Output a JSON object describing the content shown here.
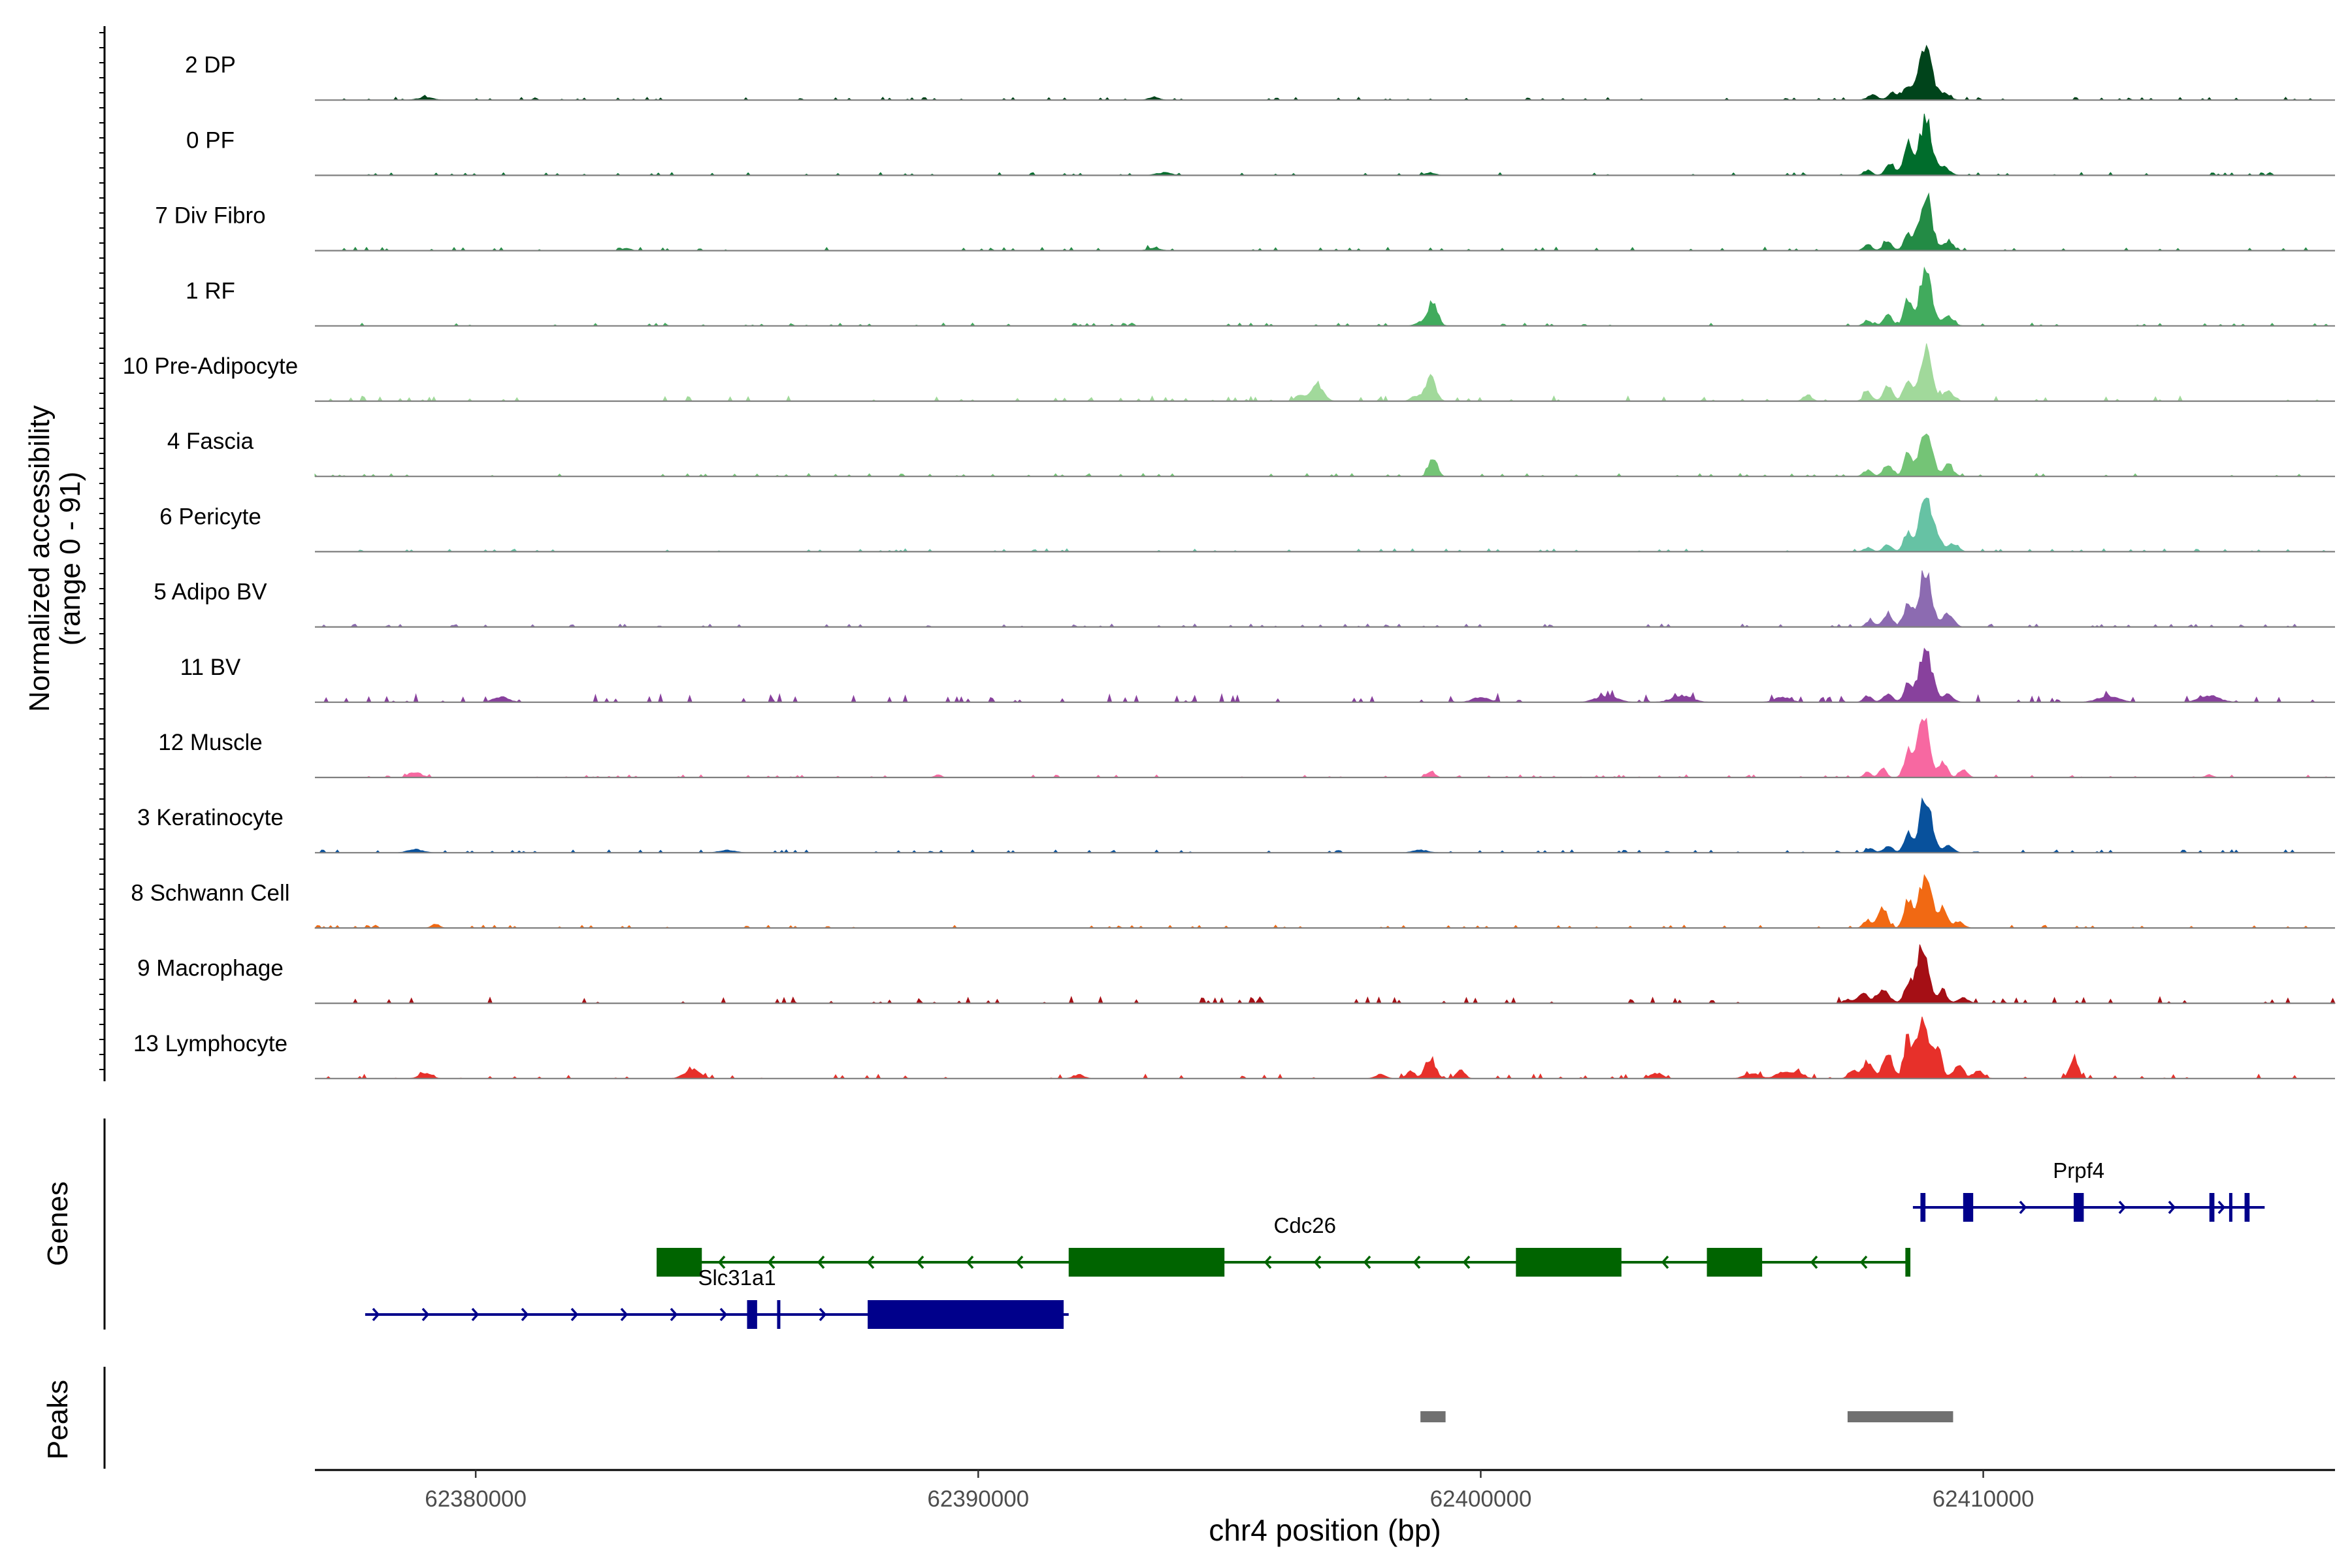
{
  "chart_data": {
    "type": "area",
    "title": "",
    "ylabel_line1": "Normalized accessibility",
    "ylabel_line2": "(range 0 - 91)",
    "xlabel": "chr4 position (bp)",
    "xlim": [
      62376800,
      62417000
    ],
    "ylim": [
      0,
      91
    ],
    "x_ticks": [
      62380000,
      62390000,
      62400000,
      62410000
    ],
    "x_tick_labels": [
      "62380000",
      "62390000",
      "62400000",
      "62410000"
    ],
    "tracks_label": "Genes",
    "peaks_label": "Peaks",
    "series": [
      {
        "name": "2 DP",
        "color": "#00441b",
        "baseline": 1.2,
        "noise": 3,
        "peaks": [
          [
            62408850,
            85,
            120
          ],
          [
            62408500,
            22,
            90
          ],
          [
            62408200,
            12,
            90
          ],
          [
            62407800,
            8,
            100
          ],
          [
            62409200,
            10,
            120
          ],
          [
            62379000,
            4,
            150
          ],
          [
            62393500,
            5,
            100
          ]
        ]
      },
      {
        "name": "0 PF",
        "color": "#006d2c",
        "baseline": 1.2,
        "noise": 3,
        "peaks": [
          [
            62408850,
            85,
            120
          ],
          [
            62408500,
            50,
            80
          ],
          [
            62408150,
            18,
            90
          ],
          [
            62407700,
            8,
            80
          ],
          [
            62409200,
            12,
            120
          ],
          [
            62399000,
            4,
            100
          ],
          [
            62393700,
            4,
            150
          ]
        ]
      },
      {
        "name": "7 Div Fibro",
        "color": "#238b45",
        "baseline": 1.2,
        "noise": 4,
        "peaks": [
          [
            62408850,
            88,
            120
          ],
          [
            62408500,
            25,
            80
          ],
          [
            62408100,
            12,
            90
          ],
          [
            62407700,
            10,
            80
          ],
          [
            62409300,
            14,
            100
          ],
          [
            62393500,
            4,
            120
          ],
          [
            62383000,
            4,
            80
          ]
        ]
      },
      {
        "name": "1 RF",
        "color": "#41ab5d",
        "baseline": 1.2,
        "noise": 3,
        "peaks": [
          [
            62408850,
            85,
            120
          ],
          [
            62408500,
            40,
            80
          ],
          [
            62408100,
            16,
            90
          ],
          [
            62407700,
            8,
            80
          ],
          [
            62409300,
            16,
            100
          ],
          [
            62399050,
            38,
            90
          ],
          [
            62398800,
            6,
            100
          ]
        ]
      },
      {
        "name": "10 Pre-Adipocyte",
        "color": "#a1d99b",
        "baseline": 1.5,
        "noise": 6,
        "peaks": [
          [
            62408850,
            80,
            120
          ],
          [
            62408500,
            35,
            80
          ],
          [
            62408100,
            22,
            90
          ],
          [
            62407700,
            14,
            80
          ],
          [
            62409300,
            16,
            100
          ],
          [
            62399000,
            38,
            100
          ],
          [
            62398700,
            8,
            90
          ],
          [
            62396750,
            24,
            120
          ],
          [
            62396400,
            8,
            100
          ],
          [
            62406500,
            10,
            80
          ]
        ]
      },
      {
        "name": "4 Fascia",
        "color": "#74c476",
        "baseline": 1.2,
        "noise": 3,
        "peaks": [
          [
            62408850,
            80,
            120
          ],
          [
            62408500,
            35,
            80
          ],
          [
            62408100,
            18,
            90
          ],
          [
            62407700,
            10,
            80
          ],
          [
            62409300,
            16,
            100
          ],
          [
            62399050,
            32,
            80
          ]
        ]
      },
      {
        "name": "6 Pericyte",
        "color": "#66c2a4",
        "baseline": 1.2,
        "noise": 3,
        "peaks": [
          [
            62408850,
            85,
            120
          ],
          [
            62408500,
            30,
            80
          ],
          [
            62409100,
            20,
            80
          ],
          [
            62408100,
            10,
            90
          ],
          [
            62407700,
            6,
            80
          ],
          [
            62409400,
            12,
            100
          ]
        ]
      },
      {
        "name": "5 Adipo BV",
        "color": "#8c6bb1",
        "baseline": 1.2,
        "noise": 3,
        "peaks": [
          [
            62408850,
            88,
            120
          ],
          [
            62408500,
            38,
            80
          ],
          [
            62408100,
            22,
            90
          ],
          [
            62407750,
            10,
            80
          ],
          [
            62409300,
            22,
            100
          ]
        ]
      },
      {
        "name": "11 BV",
        "color": "#88419d",
        "baseline": 1.5,
        "noise": 10,
        "peaks": [
          [
            62408850,
            80,
            130
          ],
          [
            62408500,
            22,
            90
          ],
          [
            62408100,
            14,
            90
          ],
          [
            62407700,
            10,
            80
          ],
          [
            62409300,
            12,
            100
          ],
          [
            62380500,
            8,
            150
          ],
          [
            62404000,
            10,
            200
          ],
          [
            62412500,
            10,
            200
          ],
          [
            62414500,
            10,
            200
          ],
          [
            62400000,
            8,
            150
          ],
          [
            62402500,
            10,
            200
          ],
          [
            62406000,
            8,
            150
          ]
        ]
      },
      {
        "name": "12 Muscle",
        "color": "#f768a1",
        "baseline": 0.8,
        "noise": 3,
        "peaks": [
          [
            62408800,
            92,
            120
          ],
          [
            62408500,
            38,
            80
          ],
          [
            62409200,
            26,
            80
          ],
          [
            62409600,
            14,
            80
          ],
          [
            62408000,
            14,
            70
          ],
          [
            62407700,
            8,
            70
          ],
          [
            62378800,
            8,
            120
          ],
          [
            62399000,
            10,
            80
          ],
          [
            62389200,
            5,
            60
          ],
          [
            62414500,
            4,
            80
          ]
        ]
      },
      {
        "name": "3 Keratinocyte",
        "color": "#08519c",
        "baseline": 1.2,
        "noise": 3,
        "peaks": [
          [
            62408850,
            85,
            120
          ],
          [
            62408500,
            30,
            80
          ],
          [
            62408100,
            10,
            90
          ],
          [
            62407750,
            6,
            80
          ],
          [
            62409300,
            10,
            100
          ],
          [
            62378800,
            5,
            150
          ],
          [
            62385000,
            4,
            150
          ],
          [
            62398800,
            4,
            150
          ]
        ]
      },
      {
        "name": "8 Schwann Cell",
        "color": "#f16913",
        "baseline": 1.2,
        "noise": 3,
        "peaks": [
          [
            62408850,
            85,
            120
          ],
          [
            62408500,
            45,
            80
          ],
          [
            62409200,
            30,
            80
          ],
          [
            62408000,
            30,
            90
          ],
          [
            62407700,
            12,
            80
          ],
          [
            62409500,
            10,
            100
          ],
          [
            62379200,
            6,
            80
          ]
        ]
      },
      {
        "name": "9 Macrophage",
        "color": "#a50f15",
        "baseline": 1.5,
        "noise": 8,
        "peaks": [
          [
            62408800,
            90,
            120
          ],
          [
            62408500,
            30,
            80
          ],
          [
            62409200,
            20,
            80
          ],
          [
            62408000,
            22,
            120
          ],
          [
            62407600,
            16,
            100
          ],
          [
            62407300,
            6,
            80
          ],
          [
            62409600,
            8,
            100
          ]
        ]
      },
      {
        "name": "13 Lymphocyte",
        "color": "#e7302a",
        "baseline": 0.5,
        "noise": 6,
        "peaks": [
          [
            62408800,
            92,
            120
          ],
          [
            62408500,
            55,
            80
          ],
          [
            62409100,
            42,
            80
          ],
          [
            62408100,
            36,
            100
          ],
          [
            62407700,
            26,
            100
          ],
          [
            62407400,
            12,
            80
          ],
          [
            62409500,
            20,
            100
          ],
          [
            62409900,
            12,
            100
          ],
          [
            62411800,
            34,
            80
          ],
          [
            62399000,
            32,
            100
          ],
          [
            62398600,
            12,
            80
          ],
          [
            62399600,
            14,
            80
          ],
          [
            62379000,
            8,
            120
          ],
          [
            62384300,
            14,
            150
          ],
          [
            62405400,
            8,
            150
          ],
          [
            62406000,
            10,
            120
          ],
          [
            62406300,
            10,
            120
          ],
          [
            62403500,
            8,
            120
          ],
          [
            62392000,
            6,
            100
          ],
          [
            62398000,
            6,
            100
          ]
        ]
      }
    ],
    "genes": [
      {
        "name": "Cdc26",
        "strand": "-",
        "color": "#006400",
        "start": 62383600,
        "end": 62408500,
        "row": 1,
        "label_x": 62396500,
        "exons": [
          [
            62383600,
            62384500
          ],
          [
            62391800,
            62394900
          ],
          [
            62400700,
            62402800
          ],
          [
            62404500,
            62405600
          ],
          [
            62408450,
            62408550
          ]
        ]
      },
      {
        "name": "Slc31a1",
        "strand": "+",
        "color": "#00008b",
        "start": 62377800,
        "end": 62391800,
        "row": 2,
        "label_x": 62385200,
        "exons": [
          [
            62385400,
            62385600
          ],
          [
            62386000,
            62386060
          ],
          [
            62387800,
            62391700
          ]
        ]
      },
      {
        "name": "Prpf4",
        "strand": "+",
        "color": "#00008b",
        "start": 62408600,
        "end": 62415600,
        "row": 0,
        "label_x": 62411900,
        "exons": [
          [
            62408750,
            62408850
          ],
          [
            62409600,
            62409800
          ],
          [
            62411800,
            62412000
          ],
          [
            62414500,
            62414600
          ],
          [
            62414900,
            62414950
          ],
          [
            62415200,
            62415300
          ]
        ]
      }
    ],
    "peaks": [
      [
        62398800,
        62399300
      ],
      [
        62407300,
        62409400
      ]
    ],
    "peak_color": "#707070"
  }
}
